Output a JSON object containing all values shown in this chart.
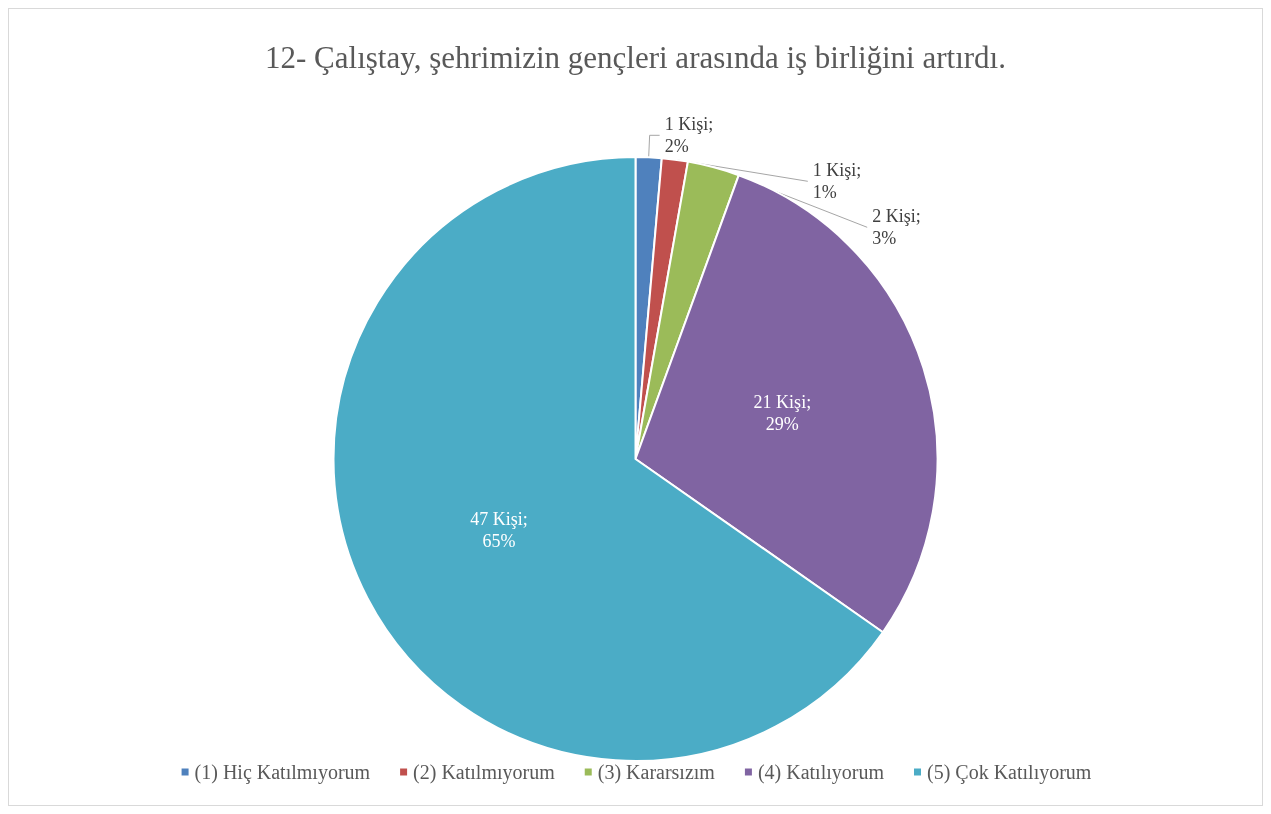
{
  "chart_data": {
    "type": "pie",
    "title": "12- Çalıştay, şehrimizin gençleri arasında iş birliğini artırdı.",
    "categories": [
      "(1) Hiç Katılmıyorum",
      "(2) Katılmıyorum",
      "(3) Kararsızım",
      "(4) Katılıyorum",
      "(5) Çok Katılıyorum"
    ],
    "values": [
      1,
      1,
      2,
      21,
      47
    ],
    "colors": [
      "#4f81bd",
      "#c0504d",
      "#9bbb59",
      "#8064a2",
      "#4bacc6"
    ],
    "value_labels": [
      "1 Kişi;\n2%",
      "1 Kişi;\n1%",
      "2 Kişi;\n3%",
      "21 Kişi;\n29%",
      "47 Kişi;\n65%"
    ],
    "legend": "bottom"
  }
}
